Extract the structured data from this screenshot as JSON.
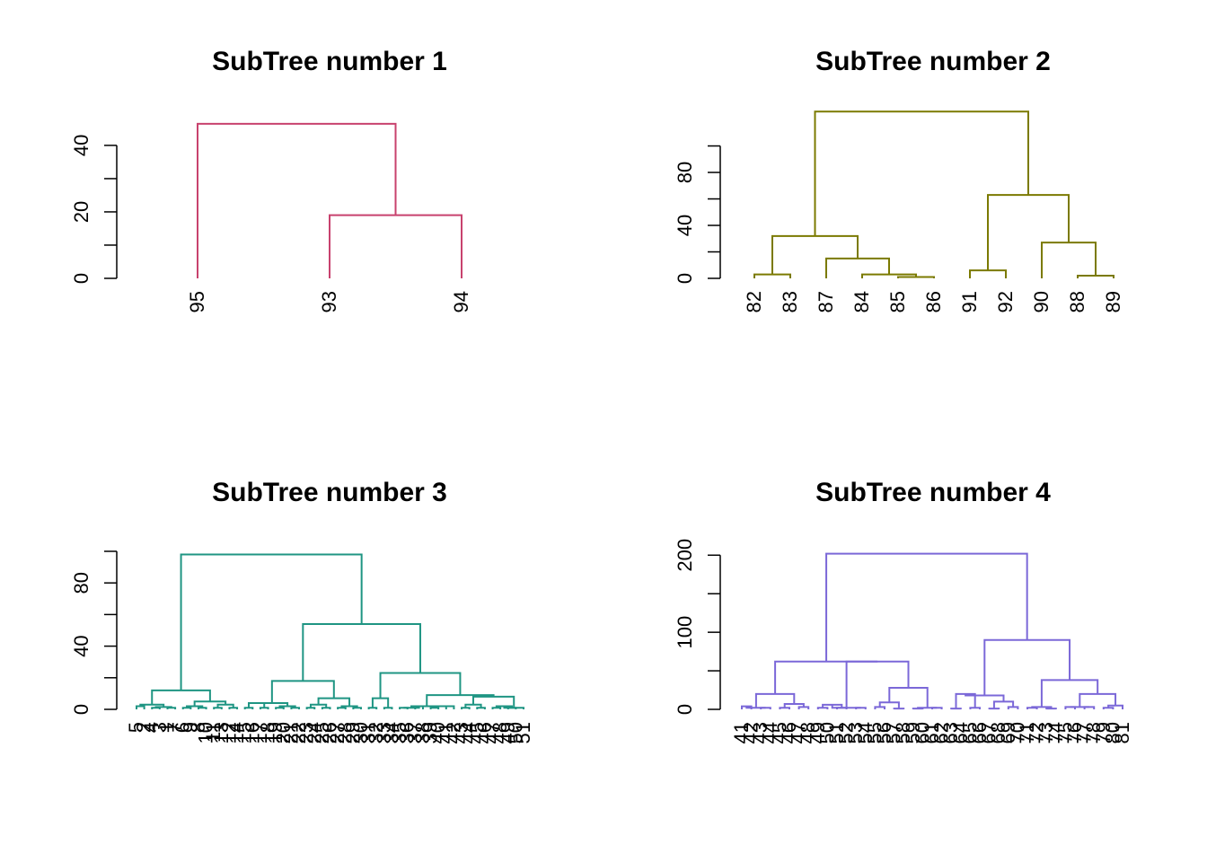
{
  "chart_data": [
    {
      "type": "dendrogram",
      "title": "SubTree number 1",
      "color": "#C8426E",
      "yticks": [
        0,
        20,
        40
      ],
      "ylim": [
        0,
        47
      ],
      "leaves": [
        "95",
        "93",
        "94"
      ],
      "merges": [
        {
          "left": "L1",
          "right": "L2",
          "height": 19
        },
        {
          "left": "L0",
          "right": "M0",
          "height": 46.5
        }
      ]
    },
    {
      "type": "dendrogram",
      "title": "SubTree number 2",
      "color": "#7B7A00",
      "yticks": [
        0,
        40,
        80
      ],
      "ylim": [
        0,
        118
      ],
      "leaves": [
        "82",
        "83",
        "87",
        "84",
        "85",
        "86",
        "91",
        "92",
        "90",
        "88",
        "89"
      ],
      "merges": [
        {
          "left": "L0",
          "right": "L1",
          "height": 3
        },
        {
          "left": "L4",
          "right": "L5",
          "height": 1
        },
        {
          "left": "L3",
          "right": "M1",
          "height": 3
        },
        {
          "left": "L2",
          "right": "M2",
          "height": 15
        },
        {
          "left": "M0",
          "right": "M3",
          "height": 32
        },
        {
          "left": "L6",
          "right": "L7",
          "height": 6
        },
        {
          "left": "L9",
          "right": "L10",
          "height": 2
        },
        {
          "left": "L8",
          "right": "M6",
          "height": 27
        },
        {
          "left": "M5",
          "right": "M7",
          "height": 63
        },
        {
          "left": "M4",
          "right": "M8",
          "height": 126
        }
      ]
    },
    {
      "type": "dendrogram",
      "title": "SubTree number 3",
      "color": "#1F9583",
      "yticks": [
        0,
        40,
        80
      ],
      "ylim": [
        0,
        100
      ],
      "leaves": [
        "5",
        "2",
        "4",
        "3",
        "1",
        "7",
        "6",
        "9",
        "8",
        "10",
        "11",
        "13",
        "12",
        "14",
        "15",
        "16",
        "17",
        "18",
        "19",
        "20",
        "21",
        "22",
        "23",
        "24",
        "25",
        "26",
        "27",
        "28",
        "29",
        "30",
        "31",
        "32",
        "33",
        "34",
        "35",
        "36",
        "37",
        "38",
        "39",
        "40",
        "41",
        "42",
        "43",
        "44",
        "45",
        "46",
        "47",
        "48",
        "49",
        "50",
        "51"
      ],
      "merges": [
        {
          "left": "L0",
          "right": "L1",
          "height": 2
        },
        {
          "left": "L2",
          "right": "L3",
          "height": 1
        },
        {
          "left": "L4",
          "right": "L5",
          "height": 1
        },
        {
          "left": "M1",
          "right": "M2",
          "height": 1.5
        },
        {
          "left": "M0",
          "right": "M3",
          "height": 3
        },
        {
          "left": "L6",
          "right": "L7",
          "height": 1
        },
        {
          "left": "L8",
          "right": "L9",
          "height": 1
        },
        {
          "left": "M5",
          "right": "M6",
          "height": 2
        },
        {
          "left": "L10",
          "right": "L11",
          "height": 1
        },
        {
          "left": "L12",
          "right": "L13",
          "height": 1
        },
        {
          "left": "M8",
          "right": "M9",
          "height": 3
        },
        {
          "left": "M7",
          "right": "M10",
          "height": 5
        },
        {
          "left": "M4",
          "right": "M11",
          "height": 12
        },
        {
          "left": "L14",
          "right": "L15",
          "height": 1
        },
        {
          "left": "L16",
          "right": "L17",
          "height": 1
        },
        {
          "left": "M13",
          "right": "M14",
          "height": 4
        },
        {
          "left": "L18",
          "right": "L19",
          "height": 1
        },
        {
          "left": "L20",
          "right": "L21",
          "height": 1
        },
        {
          "left": "M16",
          "right": "M17",
          "height": 2
        },
        {
          "left": "M15",
          "right": "M18",
          "height": 4
        },
        {
          "left": "L22",
          "right": "L23",
          "height": 1
        },
        {
          "left": "L24",
          "right": "L25",
          "height": 1
        },
        {
          "left": "M20",
          "right": "M21",
          "height": 3
        },
        {
          "left": "L26",
          "right": "L27",
          "height": 1
        },
        {
          "left": "L28",
          "right": "L29",
          "height": 1
        },
        {
          "left": "M23",
          "right": "M24",
          "height": 2
        },
        {
          "left": "M22",
          "right": "M25",
          "height": 7
        },
        {
          "left": "M19",
          "right": "M26",
          "height": 18
        },
        {
          "left": "L30",
          "right": "L31",
          "height": 1
        },
        {
          "left": "L32",
          "right": "L33",
          "height": 1
        },
        {
          "left": "M28",
          "right": "M29",
          "height": 7
        },
        {
          "left": "L34",
          "right": "L35",
          "height": 1
        },
        {
          "left": "L36",
          "right": "L37",
          "height": 2
        },
        {
          "left": "M31",
          "right": "M32",
          "height": 1
        },
        {
          "left": "L38",
          "right": "L39",
          "height": 1
        },
        {
          "left": "L40",
          "right": "L41",
          "height": 2
        },
        {
          "left": "M34",
          "right": "M35",
          "height": 2
        },
        {
          "left": "L42",
          "right": "L43",
          "height": 1
        },
        {
          "left": "L44",
          "right": "L45",
          "height": 1
        },
        {
          "left": "M37",
          "right": "M38",
          "height": 3
        },
        {
          "left": "L46",
          "right": "L47",
          "height": 1
        },
        {
          "left": "L48",
          "right": "L49",
          "height": 1
        },
        {
          "left": "M40",
          "right": "M41",
          "height": 2
        },
        {
          "left": "M42",
          "right": "L50",
          "height": 1
        },
        {
          "left": "M39",
          "right": "M43",
          "height": 8
        },
        {
          "left": "M33",
          "right": "M36",
          "height": 2
        },
        {
          "left": "M45",
          "right": "M44",
          "height": 9
        },
        {
          "left": "M30",
          "right": "M46",
          "height": 23
        },
        {
          "left": "M27",
          "right": "M47",
          "height": 54
        },
        {
          "left": "M12",
          "right": "M48",
          "height": 98
        }
      ]
    },
    {
      "type": "dendrogram",
      "title": "SubTree number 4",
      "color": "#7B68D8",
      "yticks": [
        0,
        100,
        200
      ],
      "ylim": [
        0,
        205
      ],
      "leaves": [
        "41",
        "42",
        "43",
        "44",
        "45",
        "46",
        "47",
        "48",
        "49",
        "50",
        "51",
        "52",
        "53",
        "54",
        "55",
        "56",
        "57",
        "58",
        "59",
        "60",
        "61",
        "62",
        "63",
        "64",
        "65",
        "66",
        "67",
        "68",
        "69",
        "70",
        "71",
        "72",
        "73",
        "74",
        "75",
        "76",
        "77",
        "78",
        "79",
        "80",
        "81"
      ],
      "merges": [
        {
          "left": "L0",
          "right": "L1",
          "height": 4
        },
        {
          "left": "L2",
          "right": "L3",
          "height": 2
        },
        {
          "left": "M0",
          "right": "M1",
          "height": 2
        },
        {
          "left": "L4",
          "right": "L5",
          "height": 2
        },
        {
          "left": "L6",
          "right": "L7",
          "height": 3
        },
        {
          "left": "M3",
          "right": "M4",
          "height": 7
        },
        {
          "left": "M2",
          "right": "M5",
          "height": 20
        },
        {
          "left": "L8",
          "right": "L9",
          "height": 2
        },
        {
          "left": "L10",
          "right": "L11",
          "height": 2
        },
        {
          "left": "M7",
          "right": "M8",
          "height": 6
        },
        {
          "left": "L12",
          "right": "L13",
          "height": 2
        },
        {
          "left": "M9",
          "right": "M10",
          "height": 2
        },
        {
          "left": "L14",
          "right": "L15",
          "height": 3
        },
        {
          "left": "L16",
          "right": "L17",
          "height": 1
        },
        {
          "left": "M12",
          "right": "M13",
          "height": 9
        },
        {
          "left": "L18",
          "right": "L19",
          "height": 1
        },
        {
          "left": "L20",
          "right": "L21",
          "height": 2
        },
        {
          "left": "M15",
          "right": "M16",
          "height": 2
        },
        {
          "left": "M14",
          "right": "M17",
          "height": 28
        },
        {
          "left": "M11",
          "right": "M18",
          "height": 62
        },
        {
          "left": "M6",
          "right": "M19",
          "height": 62
        },
        {
          "left": "L22",
          "right": "L23",
          "height": 1
        },
        {
          "left": "L24",
          "right": "L25",
          "height": 2
        },
        {
          "left": "M21",
          "right": "M22",
          "height": 20
        },
        {
          "left": "L26",
          "right": "L27",
          "height": 1
        },
        {
          "left": "L28",
          "right": "L29",
          "height": 3
        },
        {
          "left": "M24",
          "right": "M25",
          "height": 10
        },
        {
          "left": "M23",
          "right": "M26",
          "height": 18
        },
        {
          "left": "L30",
          "right": "L31",
          "height": 2
        },
        {
          "left": "L32",
          "right": "L33",
          "height": 1
        },
        {
          "left": "M28",
          "right": "M29",
          "height": 3
        },
        {
          "left": "L34",
          "right": "L35",
          "height": 3
        },
        {
          "left": "L36",
          "right": "L37",
          "height": 3
        },
        {
          "left": "M31",
          "right": "M32",
          "height": 3
        },
        {
          "left": "L38",
          "right": "L39",
          "height": 2
        },
        {
          "left": "M34",
          "right": "L40",
          "height": 5
        },
        {
          "left": "M33",
          "right": "M35",
          "height": 20
        },
        {
          "left": "M30",
          "right": "M36",
          "height": 38
        },
        {
          "left": "M27",
          "right": "M37",
          "height": 90
        },
        {
          "left": "M20",
          "right": "M38",
          "height": 202
        }
      ]
    }
  ]
}
